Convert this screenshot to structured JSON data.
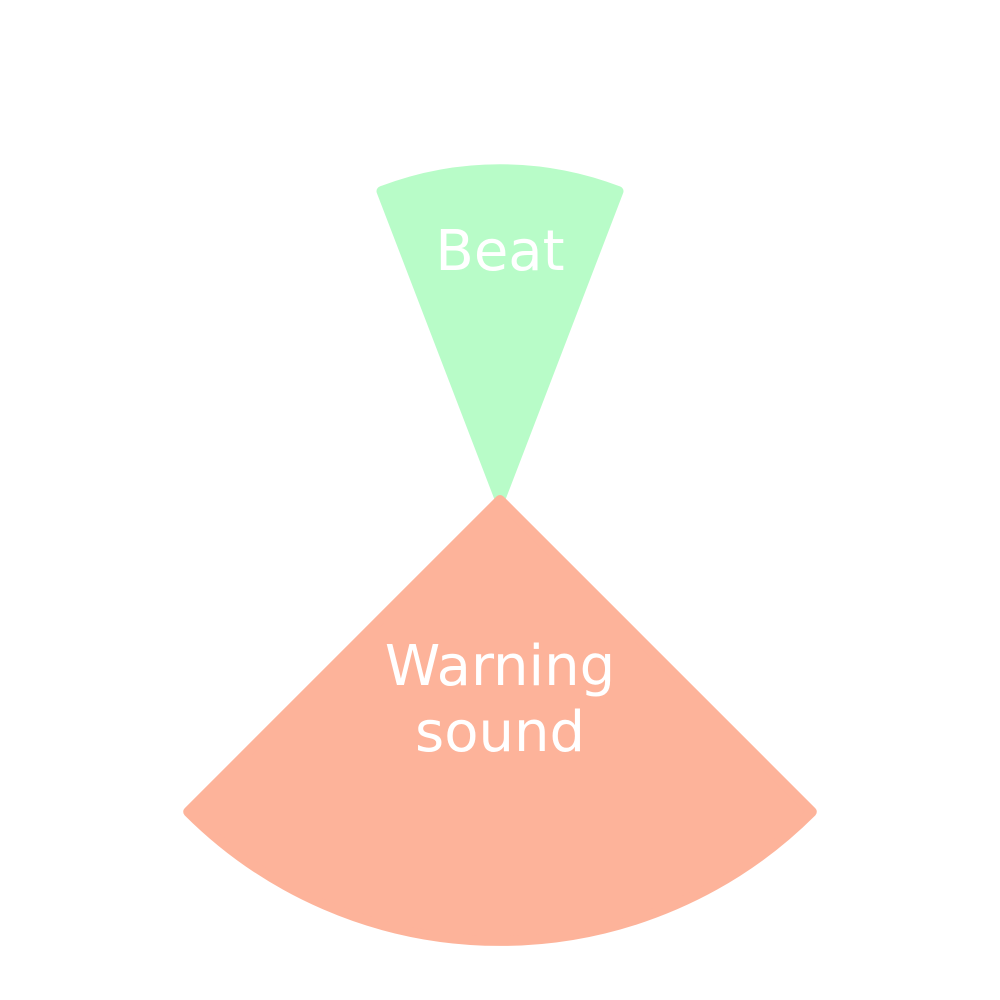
{
  "chart_data": {
    "type": "pie",
    "subtype": "polar-area",
    "slices": [
      {
        "label": "Beat",
        "label_lines": [
          "Beat"
        ],
        "value": 0.45,
        "color": "#b8fcc8"
      },
      {
        "label": "Warning sound",
        "label_lines": [
          "Warning",
          "sound"
        ],
        "value": 0.6,
        "color": "#fdb39a"
      }
    ],
    "title": "",
    "legend": "none",
    "grid": false
  }
}
